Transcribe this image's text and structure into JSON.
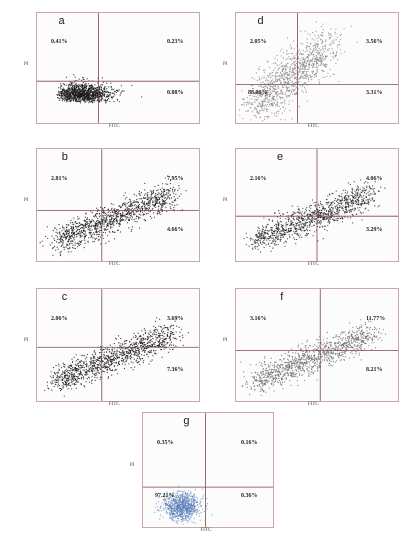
{
  "chart_data": [
    {
      "type": "scatter",
      "panel": "a",
      "xlabel": "FITC",
      "ylabel": "PI",
      "quadrants": {
        "upper_left": "0.41%",
        "upper_right": "0.23%",
        "lower_right": "0.88%",
        "lower_left": ""
      },
      "style": {
        "color": "#1a1a1a",
        "shape": "compact"
      }
    },
    {
      "type": "scatter",
      "panel": "d",
      "xlabel": "FITC",
      "ylabel": "PI",
      "quadrants": {
        "upper_left": "2.05%",
        "upper_right": "3.56%",
        "lower_right": "3.31%",
        "lower_left": "88.09%"
      },
      "style": {
        "color": "#8a8a8a",
        "shape": "spread"
      }
    },
    {
      "type": "scatter",
      "panel": "b",
      "xlabel": "FITC",
      "ylabel": "PI",
      "quadrants": {
        "upper_left": "2.81%",
        "upper_right": "7.95%",
        "lower_right": "4.66%",
        "lower_left": ""
      },
      "style": {
        "color": "#1a1a1a",
        "shape": "diagonal"
      }
    },
    {
      "type": "scatter",
      "panel": "e",
      "xlabel": "FITC",
      "ylabel": "PI",
      "quadrants": {
        "upper_left": "2.16%",
        "upper_right": "4.06%",
        "lower_right": "3.29%",
        "lower_left": ""
      },
      "style": {
        "color": "#2a2a2a",
        "shape": "diagonal"
      }
    },
    {
      "type": "scatter",
      "panel": "c",
      "xlabel": "FITC",
      "ylabel": "PI",
      "quadrants": {
        "upper_left": "2.06%",
        "upper_right": "3.69%",
        "lower_right": "7.36%",
        "lower_left": ""
      },
      "style": {
        "color": "#1a1a1a",
        "shape": "diagonal"
      }
    },
    {
      "type": "scatter",
      "panel": "f",
      "xlabel": "FITC",
      "ylabel": "PI",
      "quadrants": {
        "upper_left": "3.16%",
        "upper_right": "11.77%",
        "lower_right": "8.21%",
        "lower_left": ""
      },
      "style": {
        "color": "#6e6e6e",
        "shape": "diagonal"
      }
    },
    {
      "type": "scatter",
      "panel": "g",
      "xlabel": "FITC",
      "ylabel": "PI",
      "quadrants": {
        "upper_left": "0.35%",
        "upper_right": "0.16%",
        "lower_right": "0.36%",
        "lower_left": "97.21%"
      },
      "style": {
        "color": "#5a7fb8",
        "shape": "compact"
      }
    }
  ]
}
